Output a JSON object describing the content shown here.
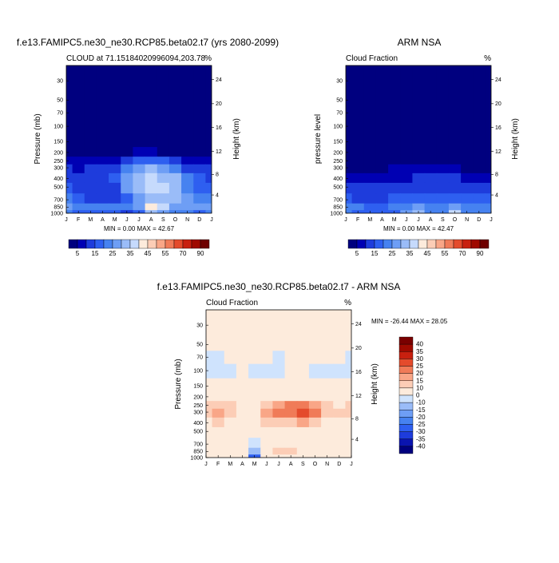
{
  "panels": [
    {
      "title": "f.e13.FAMIPC5.ne30_ne30.RCP85.beta02.t7 (yrs 2080-2099)",
      "left_label": "CLOUD at 71.15184020996094,203.78",
      "right_label": "%",
      "ylabel_left": "Pressure (mb)",
      "ylabel_right": "Height (km)",
      "minmax": "MIN =   0.00 MAX =  42.67"
    },
    {
      "title": "ARM NSA",
      "left_label": "Cloud Fraction",
      "right_label": "%",
      "ylabel_left": "pressure level",
      "ylabel_right": "Height (km)",
      "minmax": "MIN =   0.00 MAX =  42.47"
    },
    {
      "title": "f.e13.FAMIPC5.ne30_ne30.RCP85.beta02.t7 - ARM NSA",
      "left_label": "Cloud Fraction",
      "right_label": "%",
      "ylabel_left": "Pressure (mb)",
      "ylabel_right": "Height (km)",
      "minmax": "MIN = -26.44 MAX =  28.05"
    }
  ],
  "chart_data": [
    {
      "type": "heatmap",
      "title": "f.e13.FAMIPC5.ne30_ne30.RCP85.beta02.t7 (yrs 2080-2099)",
      "xlabel": "",
      "ylabel": "Pressure (mb)",
      "ylabel_right": "Height (km)",
      "units": "%",
      "x_categories": [
        "J",
        "F",
        "M",
        "A",
        "M",
        "J",
        "J",
        "A",
        "S",
        "O",
        "N",
        "D",
        "J"
      ],
      "x": [
        0,
        1,
        2,
        3,
        4,
        5,
        6,
        7,
        8,
        9,
        10,
        11,
        12
      ],
      "y_pressure": [
        20,
        50,
        100,
        150,
        200,
        250,
        300,
        400,
        500,
        700,
        850,
        1000
      ],
      "y_scale": "log",
      "y_ticks_left": [
        "30",
        "50",
        "70",
        "100",
        "150",
        "200",
        "250",
        "300",
        "400",
        "500",
        "700",
        "850",
        "1000"
      ],
      "y_ticks_right": [
        "24",
        "20",
        "16",
        "12",
        "8",
        "4"
      ],
      "values": [
        [
          0,
          0,
          0,
          0,
          0,
          0,
          0,
          0,
          0,
          0,
          0,
          0,
          0
        ],
        [
          0,
          0,
          0,
          0,
          0,
          0,
          0,
          0,
          0,
          0,
          0,
          0,
          0
        ],
        [
          0,
          0,
          0,
          0,
          0,
          0,
          0,
          0,
          0,
          0,
          0,
          0,
          0
        ],
        [
          0,
          0,
          0,
          0,
          0,
          0,
          0,
          0,
          0,
          0,
          0,
          0,
          0
        ],
        [
          2,
          2,
          2,
          3,
          3,
          4,
          5,
          5,
          4,
          3,
          2,
          2,
          2
        ],
        [
          6,
          6,
          7,
          8,
          9,
          14,
          16,
          16,
          15,
          12,
          8,
          7,
          6
        ],
        [
          10,
          9,
          10,
          12,
          13,
          24,
          28,
          30,
          27,
          22,
          14,
          11,
          10
        ],
        [
          14,
          12,
          12,
          14,
          15,
          27,
          32,
          35,
          34,
          30,
          20,
          15,
          14
        ],
        [
          18,
          14,
          12,
          12,
          13,
          25,
          32,
          36,
          36,
          32,
          24,
          18,
          18
        ],
        [
          22,
          18,
          14,
          12,
          12,
          18,
          26,
          32,
          33,
          30,
          26,
          22,
          22
        ],
        [
          27,
          24,
          22,
          22,
          24,
          20,
          26,
          42,
          36,
          26,
          28,
          26,
          27
        ],
        [
          20,
          18,
          16,
          16,
          18,
          12,
          18,
          34,
          26,
          20,
          20,
          18,
          20
        ]
      ],
      "min": 0.0,
      "max": 42.67,
      "colorbar_levels": [
        5,
        10,
        15,
        20,
        25,
        30,
        35,
        40,
        45,
        50,
        55,
        60,
        70,
        80,
        90
      ],
      "colorbar_labels": [
        "5",
        "15",
        "25",
        "35",
        "45",
        "55",
        "70",
        "90"
      ]
    },
    {
      "type": "heatmap",
      "title": "ARM NSA",
      "xlabel": "",
      "ylabel": "pressure level",
      "ylabel_right": "Height (km)",
      "units": "%",
      "x_categories": [
        "J",
        "F",
        "M",
        "A",
        "M",
        "J",
        "J",
        "A",
        "S",
        "O",
        "N",
        "D",
        "J"
      ],
      "x": [
        0,
        1,
        2,
        3,
        4,
        5,
        6,
        7,
        8,
        9,
        10,
        11,
        12
      ],
      "y_pressure": [
        20,
        50,
        100,
        150,
        200,
        250,
        300,
        400,
        500,
        700,
        850,
        1000
      ],
      "y_scale": "log",
      "y_ticks_left": [
        "30",
        "50",
        "70",
        "100",
        "150",
        "200",
        "250",
        "300",
        "400",
        "500",
        "700",
        "850",
        "1000"
      ],
      "y_ticks_right": [
        "24",
        "20",
        "16",
        "12",
        "8",
        "4"
      ],
      "values": [
        [
          0,
          0,
          0,
          0,
          0,
          0,
          0,
          0,
          0,
          0,
          0,
          0,
          0
        ],
        [
          0,
          0,
          0,
          0,
          0,
          0,
          0,
          0,
          0,
          0,
          0,
          0,
          0
        ],
        [
          0,
          0,
          0,
          0,
          0,
          0,
          0,
          0,
          0,
          0,
          0,
          0,
          0
        ],
        [
          0,
          0,
          0,
          0,
          0,
          0,
          0,
          0,
          0,
          0,
          0,
          0,
          0
        ],
        [
          0,
          0,
          0,
          0,
          0,
          0,
          0,
          0,
          0,
          0,
          0,
          0,
          0
        ],
        [
          1,
          1,
          1,
          1,
          2,
          2,
          2,
          2,
          2,
          2,
          1,
          1,
          1
        ],
        [
          4,
          3,
          3,
          4,
          5,
          5,
          6,
          6,
          6,
          5,
          4,
          4,
          4
        ],
        [
          8,
          7,
          7,
          8,
          9,
          9,
          10,
          10,
          11,
          10,
          9,
          8,
          8
        ],
        [
          12,
          10,
          10,
          11,
          12,
          13,
          14,
          13,
          14,
          14,
          12,
          12,
          12
        ],
        [
          16,
          13,
          12,
          13,
          15,
          18,
          19,
          16,
          17,
          18,
          16,
          15,
          16
        ],
        [
          22,
          20,
          18,
          18,
          20,
          22,
          26,
          22,
          24,
          28,
          22,
          20,
          22
        ],
        [
          20,
          18,
          16,
          16,
          18,
          26,
          34,
          20,
          22,
          38,
          24,
          20,
          20
        ]
      ],
      "min": 0.0,
      "max": 42.47,
      "colorbar_levels": [
        5,
        10,
        15,
        20,
        25,
        30,
        35,
        40,
        45,
        50,
        55,
        60,
        70,
        80,
        90
      ],
      "colorbar_labels": [
        "5",
        "15",
        "25",
        "35",
        "45",
        "55",
        "70",
        "90"
      ]
    },
    {
      "type": "heatmap",
      "title": "f.e13.FAMIPC5.ne30_ne30.RCP85.beta02.t7 - ARM NSA",
      "xlabel": "",
      "ylabel": "Pressure (mb)",
      "ylabel_right": "Height (km)",
      "units": "%",
      "x_categories": [
        "J",
        "F",
        "M",
        "A",
        "M",
        "J",
        "J",
        "A",
        "S",
        "O",
        "N",
        "D",
        "J"
      ],
      "x": [
        0,
        1,
        2,
        3,
        4,
        5,
        6,
        7,
        8,
        9,
        10,
        11,
        12
      ],
      "y_pressure": [
        20,
        50,
        70,
        100,
        150,
        200,
        250,
        300,
        400,
        500,
        700,
        850,
        1000
      ],
      "y_scale": "log",
      "y_ticks_left": [
        "30",
        "50",
        "70",
        "100",
        "150",
        "200",
        "250",
        "300",
        "400",
        "500",
        "700",
        "850",
        "1000"
      ],
      "y_ticks_right": [
        "24",
        "20",
        "16",
        "12",
        "8",
        "4"
      ],
      "values": [
        [
          0.5,
          0.5,
          0.5,
          0.5,
          0.5,
          0.5,
          0.5,
          0.5,
          0.5,
          0.5,
          0.5,
          0.5,
          0.5
        ],
        [
          0.5,
          0.5,
          0.5,
          0.5,
          0.5,
          0.5,
          0.5,
          0.5,
          0.5,
          0.5,
          0.5,
          0.5,
          0.5
        ],
        [
          -1,
          -2,
          0.5,
          0.5,
          0.5,
          0.5,
          -2,
          0.5,
          0.5,
          0.5,
          0.5,
          0.5,
          -1
        ],
        [
          -3,
          -4,
          -2,
          0.5,
          -2,
          -2,
          -1,
          0.5,
          0.5,
          -3,
          -3,
          -4,
          -3
        ],
        [
          0.5,
          0.5,
          0.5,
          0.5,
          0.5,
          0.5,
          0.5,
          0.5,
          0.5,
          0.5,
          0.5,
          0.5,
          0.5
        ],
        [
          4,
          3,
          3,
          3,
          3,
          5,
          6,
          6,
          6,
          5,
          4,
          3,
          4
        ],
        [
          12,
          14,
          12,
          8,
          8,
          14,
          18,
          20,
          22,
          18,
          10,
          8,
          12
        ],
        [
          14,
          18,
          14,
          8,
          6,
          16,
          22,
          24,
          26,
          22,
          14,
          10,
          14
        ],
        [
          8,
          10,
          8,
          5,
          4,
          10,
          14,
          14,
          16,
          14,
          8,
          6,
          8
        ],
        [
          4,
          5,
          4,
          3,
          2,
          5,
          6,
          5,
          6,
          5,
          4,
          3,
          4
        ],
        [
          3,
          4,
          3,
          2,
          -3,
          3,
          4,
          5,
          3,
          2,
          3,
          3,
          3
        ],
        [
          4,
          6,
          8,
          3,
          -12,
          6,
          10,
          14,
          6,
          3,
          5,
          4,
          4
        ],
        [
          2,
          3,
          4,
          2,
          -26,
          3,
          6,
          8,
          4,
          2,
          3,
          2,
          2
        ]
      ],
      "min": -26.44,
      "max": 28.05,
      "colorbar_levels": [
        -40,
        -35,
        -30,
        -25,
        -20,
        -15,
        -10,
        0,
        10,
        15,
        20,
        25,
        30,
        35,
        40
      ],
      "colorbar_labels": [
        "40",
        "35",
        "30",
        "25",
        "20",
        "15",
        "10",
        "0",
        "-10",
        "-15",
        "-20",
        "-25",
        "-30",
        "-35",
        "-40"
      ]
    }
  ]
}
